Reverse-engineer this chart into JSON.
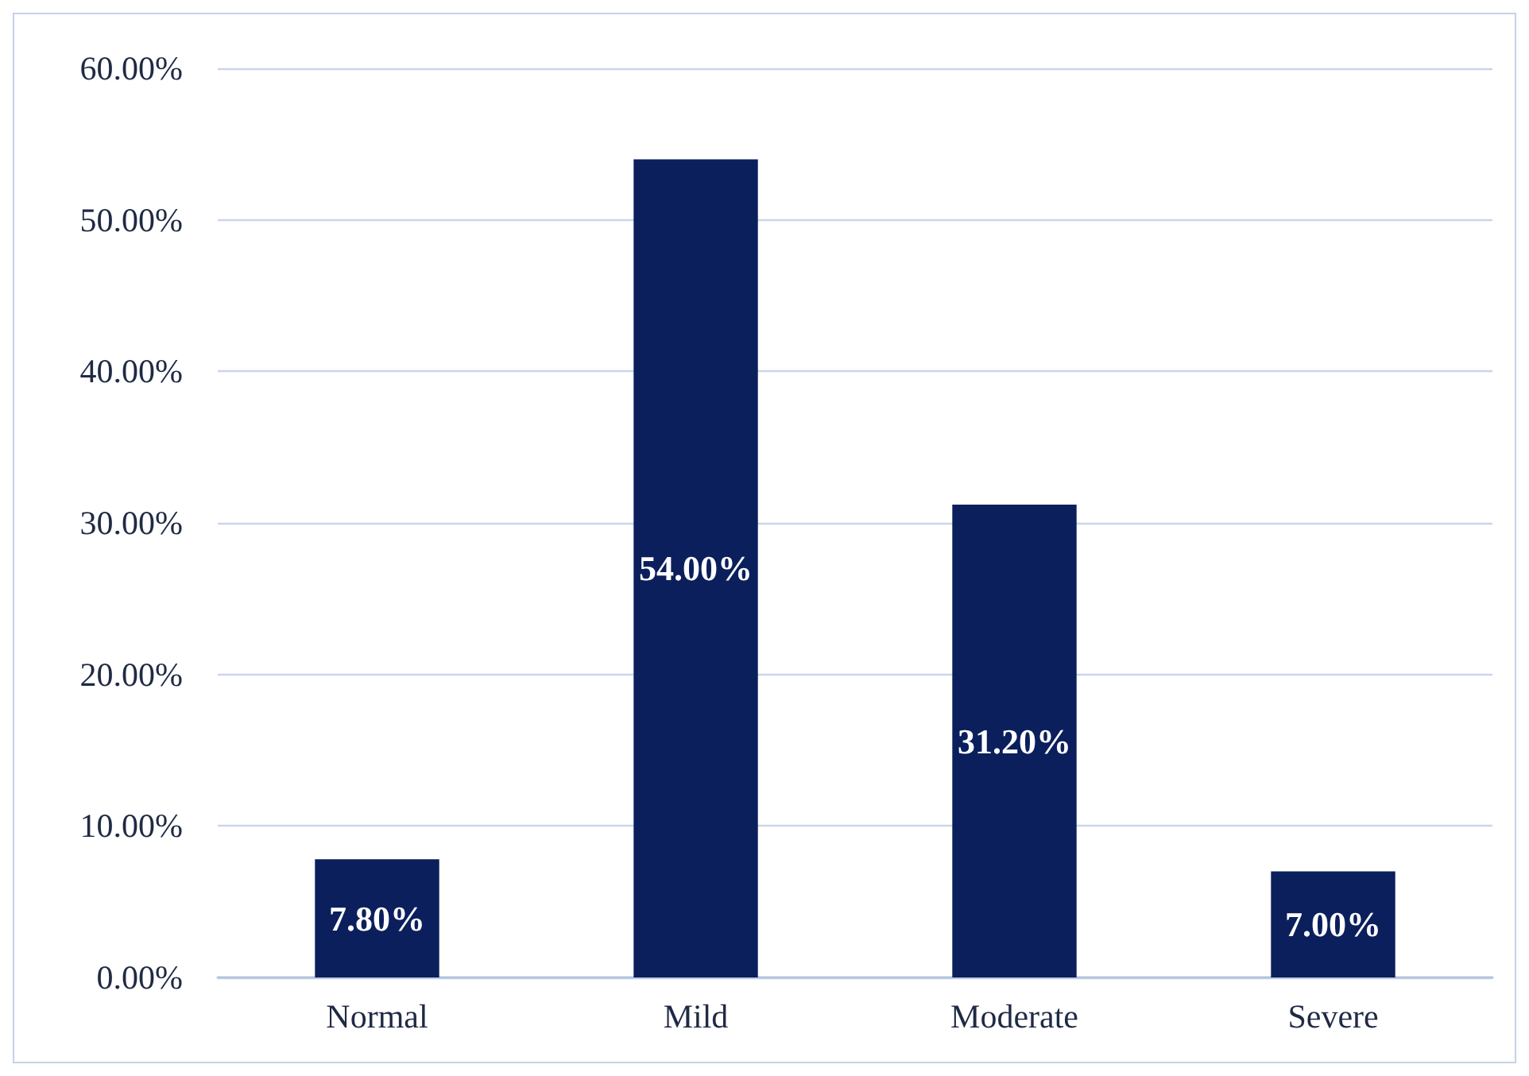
{
  "chart_data": {
    "type": "bar",
    "categories": [
      "Normal",
      "Mild",
      "Moderate",
      "Severe"
    ],
    "values": [
      7.8,
      54.0,
      31.2,
      7.0
    ],
    "color": "#0b1f5c",
    "value_labels": [
      "7.80%",
      "54.00%",
      "31.20%",
      "7.00%"
    ],
    "ylim": [
      0,
      60
    ],
    "yticks": [
      {
        "value": 0,
        "label": "0.00%"
      },
      {
        "value": 10,
        "label": "10.00%"
      },
      {
        "value": 20,
        "label": "20.00%"
      },
      {
        "value": 30,
        "label": "30.00%"
      },
      {
        "value": 40,
        "label": "40.00%"
      },
      {
        "value": 50,
        "label": "50.00%"
      },
      {
        "value": 60,
        "label": "60.00%"
      }
    ],
    "grid": "y"
  }
}
